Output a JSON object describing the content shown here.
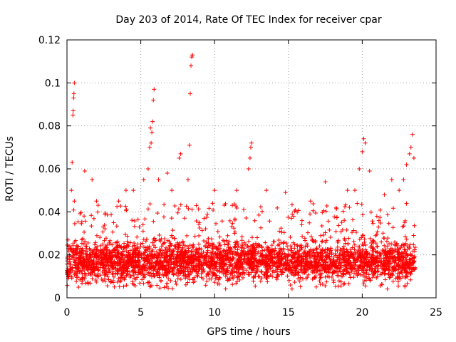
{
  "chart_data": {
    "type": "scatter",
    "title": "Day 203 of 2014, Rate Of TEC Index for receiver cpar",
    "xlabel": "GPS time / hours",
    "ylabel": "ROTI / TECUs",
    "xlim": [
      0,
      25
    ],
    "ylim": [
      0,
      0.12
    ],
    "x_ticks": [
      0,
      5,
      10,
      15,
      20,
      25
    ],
    "x_tick_labels": [
      "0",
      "5",
      "10",
      "15",
      "20",
      "25"
    ],
    "y_ticks": [
      0,
      0.02,
      0.04,
      0.06,
      0.08,
      0.1,
      0.12
    ],
    "y_tick_labels": [
      "0",
      "0.02",
      "0.04",
      "0.06",
      "0.08",
      "0.1",
      "0.12"
    ],
    "grid": true,
    "marker": "+",
    "color": "#ff0000",
    "series": [
      {
        "name": "ROTI",
        "points": [
          [
            0.3,
            0.05
          ],
          [
            0.35,
            0.063
          ],
          [
            0.4,
            0.085
          ],
          [
            0.42,
            0.087
          ],
          [
            0.45,
            0.093
          ],
          [
            0.47,
            0.095
          ],
          [
            0.5,
            0.1
          ],
          [
            0.5,
            0.045
          ],
          [
            1.2,
            0.059
          ],
          [
            1.7,
            0.055
          ],
          [
            2.0,
            0.045
          ],
          [
            3.5,
            0.045
          ],
          [
            4.0,
            0.05
          ],
          [
            4.5,
            0.05
          ],
          [
            5.2,
            0.055
          ],
          [
            5.5,
            0.06
          ],
          [
            5.6,
            0.07
          ],
          [
            5.65,
            0.079
          ],
          [
            5.7,
            0.072
          ],
          [
            5.75,
            0.077
          ],
          [
            5.8,
            0.082
          ],
          [
            5.85,
            0.092
          ],
          [
            5.9,
            0.097
          ],
          [
            6.2,
            0.055
          ],
          [
            6.8,
            0.058
          ],
          [
            7.1,
            0.05
          ],
          [
            7.6,
            0.065
          ],
          [
            7.7,
            0.067
          ],
          [
            8.2,
            0.055
          ],
          [
            8.3,
            0.071
          ],
          [
            8.35,
            0.095
          ],
          [
            8.4,
            0.108
          ],
          [
            8.45,
            0.112
          ],
          [
            8.5,
            0.113
          ],
          [
            10.0,
            0.05
          ],
          [
            11.5,
            0.05
          ],
          [
            12.3,
            0.06
          ],
          [
            12.4,
            0.065
          ],
          [
            12.45,
            0.07
          ],
          [
            12.5,
            0.072
          ],
          [
            13.5,
            0.05
          ],
          [
            14.8,
            0.049
          ],
          [
            16.5,
            0.045
          ],
          [
            17.5,
            0.054
          ],
          [
            19.0,
            0.05
          ],
          [
            19.5,
            0.05
          ],
          [
            19.8,
            0.06
          ],
          [
            20.0,
            0.068
          ],
          [
            20.1,
            0.074
          ],
          [
            20.2,
            0.072
          ],
          [
            20.5,
            0.059
          ],
          [
            21.5,
            0.048
          ],
          [
            22.0,
            0.055
          ],
          [
            22.5,
            0.05
          ],
          [
            22.8,
            0.055
          ],
          [
            23.0,
            0.062
          ],
          [
            23.2,
            0.067
          ],
          [
            23.3,
            0.07
          ],
          [
            23.4,
            0.076
          ],
          [
            23.5,
            0.065
          ]
        ],
        "dense_band": {
          "description_values": "dense cloud of measurements across the whole day",
          "x_range": [
            0,
            23.6
          ],
          "y_min": 0.004,
          "y_typical_max": 0.03,
          "y_median": 0.015
        }
      }
    ]
  }
}
